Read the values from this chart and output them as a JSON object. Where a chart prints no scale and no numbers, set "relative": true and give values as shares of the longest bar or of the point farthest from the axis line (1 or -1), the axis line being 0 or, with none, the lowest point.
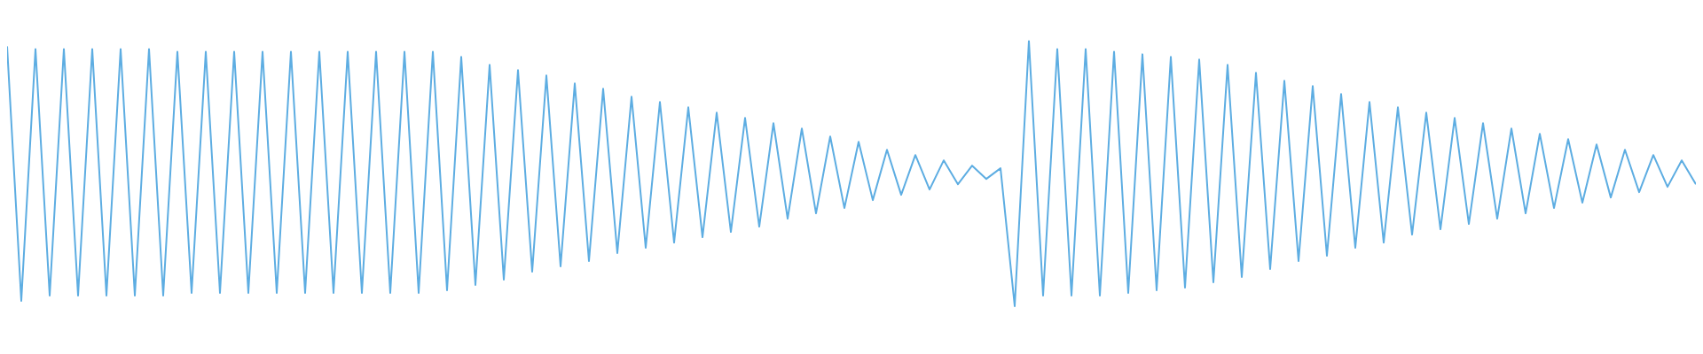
{
  "chart_data": {
    "type": "line",
    "relative": true,
    "categories": [
      null,
      null,
      null,
      null,
      null,
      null,
      null,
      null,
      null,
      null,
      null,
      null,
      null,
      null,
      null,
      null,
      null,
      null,
      null,
      null,
      null,
      null,
      null,
      null,
      null,
      null,
      null,
      null,
      null,
      null,
      null,
      null,
      null,
      null,
      null,
      null,
      null,
      null,
      null,
      null,
      null,
      null,
      null,
      null,
      null,
      null,
      null,
      null,
      null,
      null,
      null,
      null,
      null,
      null,
      null,
      null,
      null,
      null,
      null,
      null,
      null,
      null,
      null,
      null,
      null,
      null,
      null,
      null,
      null,
      null,
      null,
      null,
      null,
      null,
      null,
      null,
      null,
      null,
      null,
      null,
      null,
      null,
      null,
      null,
      null,
      null,
      null,
      null,
      null,
      null,
      null,
      null,
      null,
      null,
      null,
      null,
      null,
      null,
      null,
      null,
      null,
      null,
      null,
      null,
      null,
      null,
      null,
      null,
      null,
      null,
      null,
      null,
      null,
      null,
      null,
      null,
      null,
      null,
      null,
      null
    ],
    "series": [
      {
        "color": "#5dade2",
        "values": [
          0.98,
          0.02,
          0.97,
          0.04,
          0.97,
          0.04,
          0.97,
          0.04,
          0.97,
          0.04,
          0.97,
          0.04,
          0.96,
          0.05,
          0.96,
          0.05,
          0.96,
          0.05,
          0.96,
          0.05,
          0.96,
          0.05,
          0.96,
          0.05,
          0.96,
          0.05,
          0.96,
          0.05,
          0.96,
          0.05,
          0.96,
          0.06,
          0.94,
          0.08,
          0.91,
          0.1,
          0.89,
          0.13,
          0.87,
          0.15,
          0.84,
          0.17,
          0.82,
          0.2,
          0.79,
          0.22,
          0.77,
          0.24,
          0.75,
          0.26,
          0.73,
          0.28,
          0.71,
          0.3,
          0.69,
          0.33,
          0.67,
          0.35,
          0.64,
          0.37,
          0.62,
          0.4,
          0.59,
          0.42,
          0.57,
          0.44,
          0.55,
          0.46,
          0.53,
          0.48,
          0.52,
          0.0,
          1.0,
          0.04,
          0.97,
          0.04,
          0.97,
          0.04,
          0.96,
          0.05,
          0.95,
          0.06,
          0.94,
          0.07,
          0.93,
          0.09,
          0.91,
          0.11,
          0.88,
          0.14,
          0.85,
          0.17,
          0.83,
          0.19,
          0.8,
          0.22,
          0.77,
          0.24,
          0.75,
          0.27,
          0.73,
          0.29,
          0.71,
          0.31,
          0.69,
          0.33,
          0.67,
          0.35,
          0.65,
          0.37,
          0.63,
          0.39,
          0.61,
          0.41,
          0.59,
          0.43,
          0.57,
          0.45,
          0.55,
          0.46
        ]
      }
    ]
  }
}
